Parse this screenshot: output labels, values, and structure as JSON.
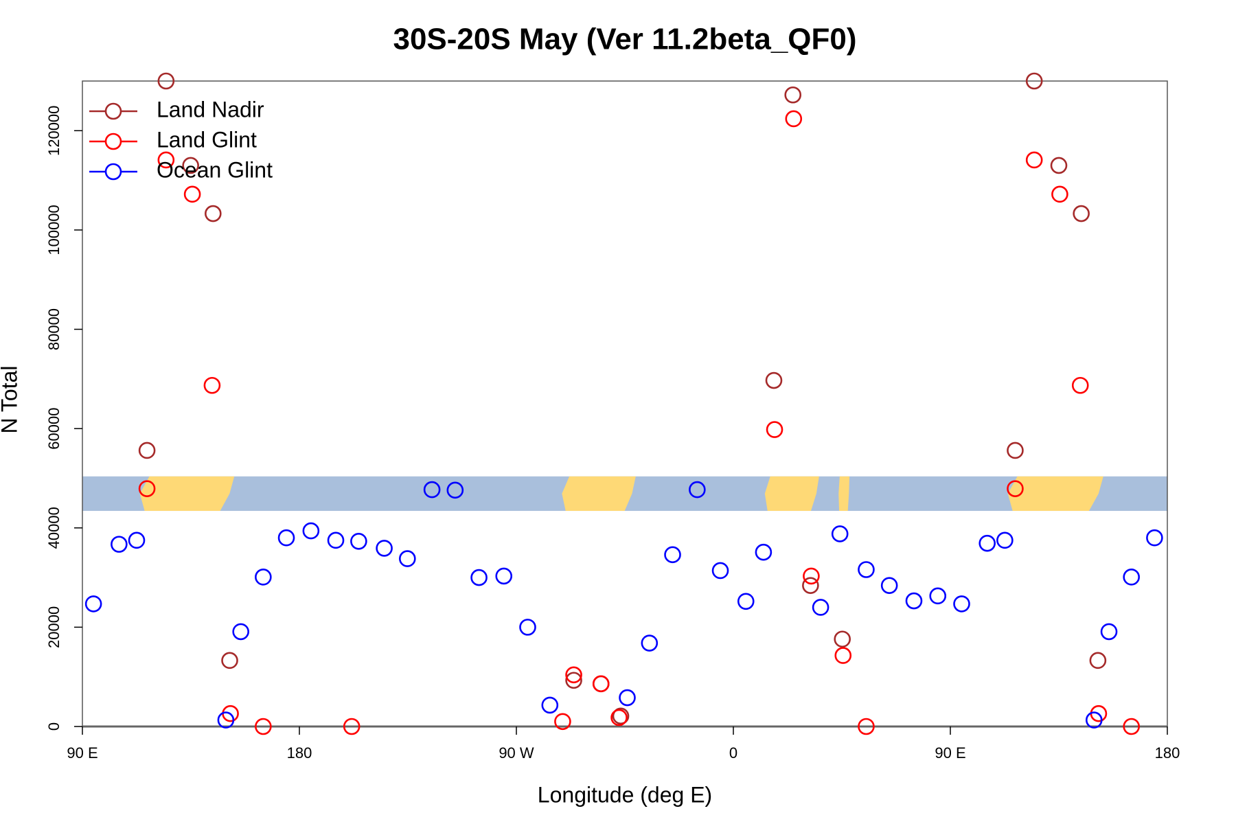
{
  "chart_data": {
    "type": "scatter",
    "title": "30S-20S May (Ver 11.2beta_QF0)",
    "x_label": "Longitude (deg E)",
    "y_label": "N Total",
    "xlim": [
      90,
      540
    ],
    "ylim": [
      0,
      130000
    ],
    "xticks": [
      {
        "value": 90,
        "label": "90 E"
      },
      180,
      {
        "value": 270,
        "label": "90 W"
      },
      {
        "value": 360,
        "label": "0"
      },
      {
        "value": 450,
        "label": "90 E"
      },
      {
        "value": 540,
        "label": "180"
      }
    ],
    "yticks": [
      0,
      20000,
      40000,
      60000,
      80000,
      100000,
      120000
    ],
    "legend": "topleft",
    "grid": false,
    "series": [
      {
        "name": "Land Nadir",
        "color": "#a52a2a",
        "x": [
          116.8,
          124.7,
          134.9,
          144.2,
          151.1,
          293.8,
          305.1,
          313.3,
          376.8,
          384.7,
          392,
          405.2,
          476.9,
          484.8,
          495,
          504.3,
          511.2
        ],
        "values": [
          55600,
          130000,
          113000,
          103300,
          13300,
          9300,
          8600,
          2100,
          69700,
          127200,
          28400,
          17600,
          55600,
          130000,
          113000,
          103300,
          13300
        ]
      },
      {
        "name": "Land Glint",
        "color": "#ff0000",
        "x": [
          116.8,
          124.7,
          135.6,
          143.8,
          151.4,
          165,
          201.7,
          289.2,
          293.8,
          305.1,
          312.6,
          377.1,
          385,
          392.3,
          405.5,
          415.1,
          476.9,
          484.8,
          495.4,
          503.9,
          511.5,
          525.1
        ],
        "values": [
          47900,
          114100,
          107200,
          68700,
          2600,
          0,
          0,
          1000,
          10400,
          8600,
          1800,
          59800,
          122400,
          30300,
          14300,
          0,
          47900,
          114100,
          107200,
          68700,
          2600,
          0
        ]
      },
      {
        "name": "Ocean Glint",
        "color": "#0000ff",
        "x": [
          94.6,
          105.2,
          112.5,
          149.5,
          155.7,
          165,
          174.6,
          184.8,
          195.1,
          204.6,
          215.2,
          224.8,
          235,
          244.6,
          254.5,
          264.8,
          274.7,
          283.9,
          316,
          325.2,
          334.8,
          345,
          354.6,
          365.2,
          372.5,
          396.2,
          404.2,
          415.1,
          424.7,
          434.9,
          444.8,
          454.7,
          465.3,
          472.6,
          509.6,
          515.8,
          525.1,
          534.7
        ],
        "values": [
          24700,
          36700,
          37500,
          1300,
          19100,
          30100,
          38000,
          39400,
          37500,
          37300,
          35900,
          33800,
          47700,
          47600,
          30000,
          30300,
          20000,
          4300,
          5800,
          16800,
          34600,
          47700,
          31400,
          25200,
          35100,
          24000,
          38800,
          31600,
          28400,
          25300,
          26300,
          24700,
          36900,
          37500,
          1300,
          19100,
          30100,
          38000
        ]
      }
    ]
  }
}
